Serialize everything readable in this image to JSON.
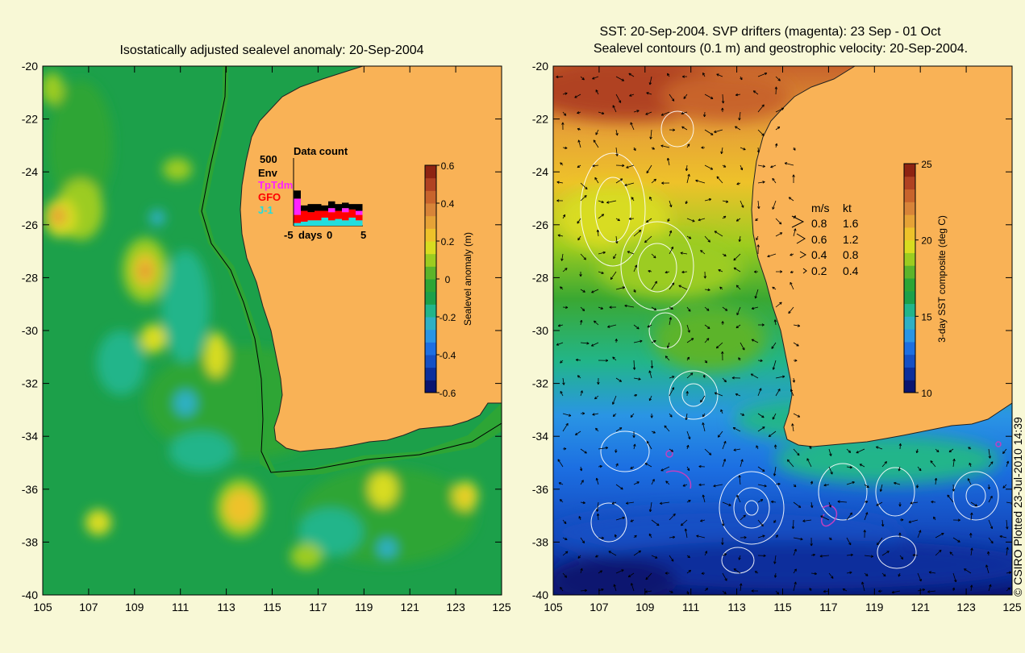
{
  "colors": {
    "background": "#f8f8d6",
    "land": "#f9b256",
    "drifter": "#c040c0",
    "contour": "#ffffff"
  },
  "chart_data": [
    {
      "type": "heatmap",
      "title": "Isostatically adjusted sealevel anomaly: 20-Sep-2004",
      "x_ticks": [
        "105",
        "107",
        "109",
        "111",
        "113",
        "115",
        "117",
        "119",
        "121",
        "123",
        "125"
      ],
      "y_ticks": [
        "-20",
        "-22",
        "-24",
        "-26",
        "-28",
        "-30",
        "-32",
        "-34",
        "-36",
        "-38",
        "-40"
      ],
      "xlim": [
        105,
        125
      ],
      "ylim": [
        -40,
        -20
      ],
      "colorbar": {
        "label": "Sealevel anomaly (m)",
        "ticks": [
          "0.6",
          "0.4",
          "0.2",
          "0",
          "-0.2",
          "-0.4",
          "-0.6"
        ],
        "range": [
          -0.6,
          0.6
        ],
        "colors": [
          "#0a1470",
          "#0c2f9c",
          "#1550c4",
          "#1c6fe2",
          "#2a95e4",
          "#2fb0c4",
          "#22b58a",
          "#1ca04a",
          "#2da535",
          "#5cb42a",
          "#9ccc20",
          "#d8dc20",
          "#eec22a",
          "#e6a236",
          "#d88438",
          "#c8642c",
          "#b04222",
          "#8e2412"
        ]
      },
      "inset": {
        "title": "Data count",
        "y_label": "500",
        "legend": [
          {
            "name": "Env",
            "color": "#000000"
          },
          {
            "name": "TpTdm",
            "color": "#ff22ff"
          },
          {
            "name": "GFO",
            "color": "#ff0000"
          },
          {
            "name": "J-1",
            "color": "#22dddd"
          }
        ],
        "x_ticks": [
          "-5",
          "days",
          "0",
          "5"
        ],
        "bars": [
          {
            "day": -5,
            "env": 60,
            "tptdm": 120,
            "gfo": 60,
            "j1": 20
          },
          {
            "day": -4,
            "env": 40,
            "tptdm": 0,
            "gfo": 80,
            "j1": 30
          },
          {
            "day": -3,
            "env": 60,
            "tptdm": 0,
            "gfo": 60,
            "j1": 40
          },
          {
            "day": -2,
            "env": 50,
            "tptdm": 0,
            "gfo": 70,
            "j1": 40
          },
          {
            "day": -1,
            "env": 40,
            "tptdm": 0,
            "gfo": 50,
            "j1": 60
          },
          {
            "day": 0,
            "env": 50,
            "tptdm": 30,
            "gfo": 60,
            "j1": 40
          },
          {
            "day": 1,
            "env": 50,
            "tptdm": 0,
            "gfo": 60,
            "j1": 50
          },
          {
            "day": 2,
            "env": 40,
            "tptdm": 30,
            "gfo": 60,
            "j1": 40
          },
          {
            "day": 3,
            "env": 40,
            "tptdm": 0,
            "gfo": 60,
            "j1": 60
          },
          {
            "day": 4,
            "env": 50,
            "tptdm": 30,
            "gfo": 40,
            "j1": 40
          }
        ]
      }
    },
    {
      "type": "heatmap",
      "title_line1": "SST: 20-Sep-2004. SVP drifters (magenta): 23 Sep - 01 Oct",
      "title_line2": "Sealevel contours (0.1 m) and geostrophic velocity: 20-Sep-2004.",
      "x_ticks": [
        "105",
        "107",
        "109",
        "111",
        "113",
        "115",
        "117",
        "119",
        "121",
        "123",
        "125"
      ],
      "y_ticks": [
        "-20",
        "-22",
        "-24",
        "-26",
        "-28",
        "-30",
        "-32",
        "-34",
        "-36",
        "-38",
        "-40"
      ],
      "xlim": [
        105,
        125
      ],
      "ylim": [
        -40,
        -20
      ],
      "colorbar": {
        "label": "3-day SST composite (deg C)",
        "ticks": [
          "25",
          "20",
          "15",
          "10"
        ],
        "range": [
          10,
          25
        ],
        "colors": [
          "#0a1470",
          "#0c2f9c",
          "#1550c4",
          "#1c6fe2",
          "#2a95e4",
          "#2fb0c4",
          "#22b58a",
          "#1ca04a",
          "#2da535",
          "#5cb42a",
          "#9ccc20",
          "#d8dc20",
          "#eec22a",
          "#e6a236",
          "#d88438",
          "#c8642c",
          "#b04222",
          "#8e2412"
        ]
      },
      "velocity_legend": {
        "header_ms": "m/s",
        "header_kt": "kt",
        "rows": [
          {
            "ms": "0.8",
            "kt": "1.6"
          },
          {
            "ms": "0.6",
            "kt": "1.2"
          },
          {
            "ms": "0.4",
            "kt": "0.8"
          },
          {
            "ms": "0.2",
            "kt": "0.4"
          }
        ]
      }
    }
  ],
  "footer": "© CSIRO Plotted 23-Jul-2010 14:39"
}
